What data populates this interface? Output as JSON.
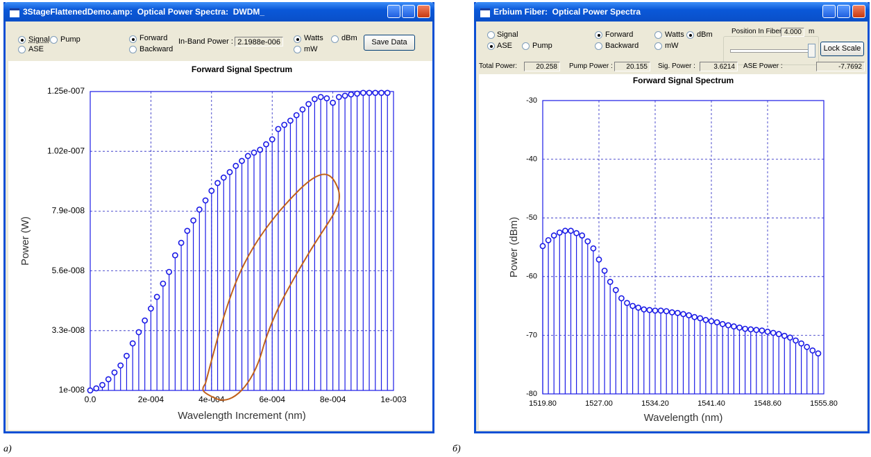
{
  "windows": [
    {
      "title": "3StageFlattenedDemo.amp:  Optical Power Spectra:  DWDM_",
      "radios": [
        {
          "label": "Signal",
          "checked": true
        },
        {
          "label": "Pump",
          "checked": false
        },
        {
          "label": "ASE",
          "checked": false
        },
        {
          "label": "Forward",
          "checked": true
        },
        {
          "label": "Backward",
          "checked": false
        },
        {
          "label": "Watts",
          "checked": true
        },
        {
          "label": "dBm",
          "checked": false
        },
        {
          "label": "mW",
          "checked": false
        }
      ],
      "in_band_label": "In-Band Power :",
      "in_band_value": "2.1988e-006",
      "button": "Save Data"
    },
    {
      "title": "Erbium Fiber:  Optical Power Spectra",
      "radios": [
        {
          "label": "Signal",
          "checked": false
        },
        {
          "label": "ASE",
          "checked": true
        },
        {
          "label": "Pump",
          "checked": false
        },
        {
          "label": "Forward",
          "checked": true
        },
        {
          "label": "Backward",
          "checked": false
        },
        {
          "label": "Watts",
          "checked": false
        },
        {
          "label": "dBm",
          "checked": true
        },
        {
          "label": "mW",
          "checked": false
        }
      ],
      "position_label": "Position In Fiber:",
      "position_value": "4.000",
      "position_unit": "m",
      "button": "Lock Scale",
      "readouts": [
        {
          "label": "Total Power:",
          "value": "20.258"
        },
        {
          "label": "Pump Power :",
          "value": "20.155"
        },
        {
          "label": "Sig. Power :",
          "value": "3.6214"
        },
        {
          "label": "ASE Power :",
          "value": "-7.7692"
        }
      ]
    }
  ],
  "captions": [
    "а)",
    "б)"
  ],
  "chart_data": [
    {
      "type": "stem",
      "title": "Forward Signal Spectrum",
      "xlabel": "Wavelength Increment (nm)",
      "ylabel": "Power (W)",
      "color": "#1a1ae6",
      "grid": true,
      "x": [
        0,
        2e-05,
        4e-05,
        6e-05,
        8e-05,
        0.0001,
        0.00012,
        0.00014,
        0.00016,
        0.00018,
        0.0002,
        0.00022,
        0.00024,
        0.00026,
        0.00028,
        0.0003,
        0.00032,
        0.00034,
        0.00036,
        0.00038,
        0.0004,
        0.00042,
        0.00044,
        0.00046,
        0.00048,
        0.0005,
        0.00052,
        0.00054,
        0.00056,
        0.00058,
        0.0006,
        0.00062,
        0.00064,
        0.00066,
        0.00068,
        0.0007,
        0.00072,
        0.00074,
        0.00076,
        0.00078,
        0.0008,
        0.00082,
        0.00084,
        0.00086,
        0.00088,
        0.0009,
        0.00092,
        0.00094,
        0.00096,
        0.00098
      ],
      "values": [
        1e-08,
        1.08e-08,
        1.21e-08,
        1.43e-08,
        1.69e-08,
        1.96e-08,
        2.33e-08,
        2.81e-08,
        3.24e-08,
        3.69e-08,
        4.15e-08,
        4.6e-08,
        5.11e-08,
        5.56e-08,
        6.2e-08,
        6.68e-08,
        7.14e-08,
        7.54e-08,
        7.96e-08,
        8.31e-08,
        8.68e-08,
        8.98e-08,
        9.19e-08,
        9.4e-08,
        9.64e-08,
        9.83e-08,
        1.002e-07,
        1.015e-07,
        1.026e-07,
        1.047e-07,
        1.066e-07,
        1.106e-07,
        1.122e-07,
        1.138e-07,
        1.159e-07,
        1.181e-07,
        1.202e-07,
        1.221e-07,
        1.229e-07,
        1.224e-07,
        1.207e-07,
        1.229e-07,
        1.234e-07,
        1.239e-07,
        1.242e-07,
        1.245e-07,
        1.245e-07,
        1.245e-07,
        1.245e-07,
        1.245e-07
      ],
      "xlim": [
        0,
        0.001
      ],
      "xticks": [
        {
          "value": 0,
          "label": "0.0"
        },
        {
          "value": 0.0002,
          "label": "2e-004"
        },
        {
          "value": 0.0004,
          "label": "4e-004"
        },
        {
          "value": 0.0006,
          "label": "6e-004"
        },
        {
          "value": 0.0008,
          "label": "8e-004"
        },
        {
          "value": 0.001,
          "label": "1e-003"
        }
      ],
      "ylim": [
        1e-08,
        1.25e-07
      ],
      "yticks": [
        {
          "value": 1e-08,
          "label": "1e-008"
        },
        {
          "value": 3.3e-08,
          "label": "3.3e-008"
        },
        {
          "value": 5.6e-08,
          "label": "5.6e-008"
        },
        {
          "value": 7.9e-08,
          "label": "7.9e-008"
        },
        {
          "value": 1.02e-07,
          "label": "1.02e-007"
        },
        {
          "value": 1.25e-07,
          "label": "1.25e-007"
        }
      ]
    },
    {
      "type": "stem",
      "title": "Forward Signal Spectrum",
      "xlabel": "Wavelength (nm)",
      "ylabel": "Power (dBm)",
      "color": "#1a1ae6",
      "grid": true,
      "x": [
        1519.8,
        1520.52,
        1521.24,
        1521.96,
        1522.68,
        1523.4,
        1524.12,
        1524.84,
        1525.56,
        1526.28,
        1527,
        1527.72,
        1528.44,
        1529.16,
        1529.88,
        1530.6,
        1531.32,
        1532.04,
        1532.76,
        1533.48,
        1534.2,
        1534.92,
        1535.64,
        1536.36,
        1537.08,
        1537.8,
        1538.52,
        1539.24,
        1539.96,
        1540.68,
        1541.4,
        1542.12,
        1542.84,
        1543.56,
        1544.28,
        1545,
        1545.72,
        1546.44,
        1547.16,
        1547.88,
        1548.6,
        1549.32,
        1550.04,
        1550.76,
        1551.48,
        1552.2,
        1552.92,
        1553.64,
        1554.36,
        1555.08
      ],
      "values": [
        -54.8,
        -53.8,
        -53.0,
        -52.5,
        -52.2,
        -52.2,
        -52.6,
        -53.0,
        -54.0,
        -55.2,
        -57.1,
        -59.0,
        -60.9,
        -62.3,
        -63.7,
        -64.5,
        -65.0,
        -65.3,
        -65.6,
        -65.7,
        -65.8,
        -65.8,
        -65.9,
        -66.1,
        -66.2,
        -66.4,
        -66.6,
        -66.9,
        -67.1,
        -67.4,
        -67.6,
        -67.8,
        -68.1,
        -68.3,
        -68.5,
        -68.7,
        -68.9,
        -69.0,
        -69.1,
        -69.2,
        -69.4,
        -69.6,
        -69.8,
        -70.1,
        -70.4,
        -70.9,
        -71.4,
        -72.0,
        -72.6,
        -73.1
      ],
      "xlim": [
        1519.8,
        1555.8
      ],
      "xticks": [
        {
          "value": 1519.8,
          "label": "1519.80"
        },
        {
          "value": 1527,
          "label": "1527.00"
        },
        {
          "value": 1534.2,
          "label": "1534.20"
        },
        {
          "value": 1541.4,
          "label": "1541.40"
        },
        {
          "value": 1548.6,
          "label": "1548.60"
        },
        {
          "value": 1555.8,
          "label": "1555.80"
        }
      ],
      "ylim": [
        -80,
        -30
      ],
      "yticks": [
        -80,
        -70,
        -60,
        -50,
        -40,
        -30
      ]
    }
  ]
}
